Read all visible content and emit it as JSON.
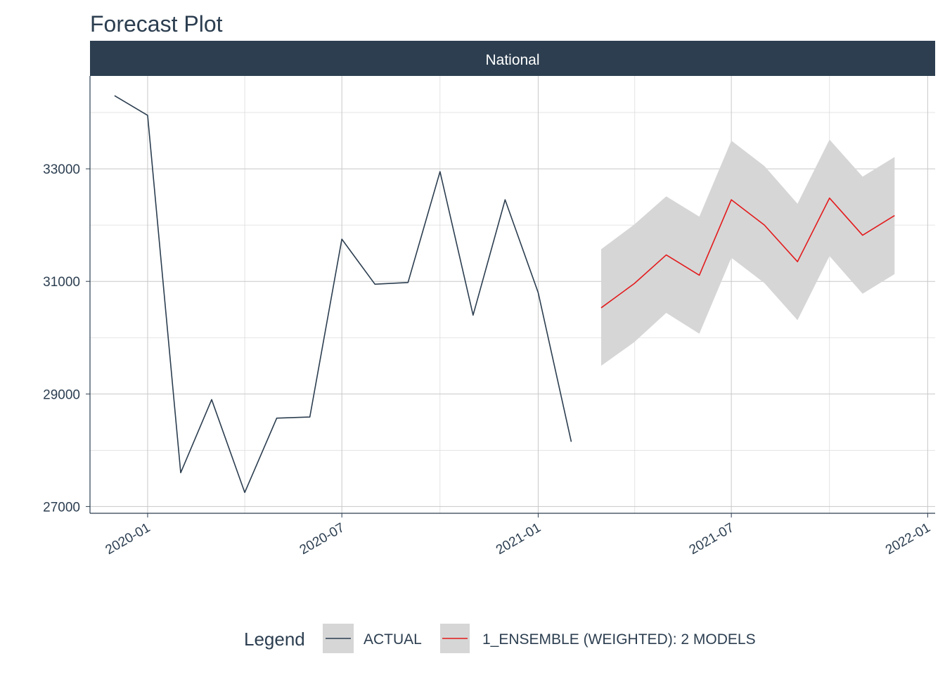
{
  "chart_data": {
    "type": "line",
    "title": "Forecast Plot",
    "facet": "National",
    "xlabel": "",
    "ylabel": "",
    "x_ticks": [
      "2020-01",
      "2020-07",
      "2021-01",
      "2021-07",
      "2022-01"
    ],
    "y_ticks": [
      27000,
      29000,
      31000,
      33000
    ],
    "ylim": [
      26880,
      34650
    ],
    "xlim": [
      "2019-11-08",
      "2022-01-08"
    ],
    "grid": true,
    "legend_title": "Legend",
    "legend_position": "bottom",
    "series": [
      {
        "name": "ACTUAL",
        "color": "#2c3e50",
        "x": [
          "2019-12-01",
          "2020-01-01",
          "2020-02-01",
          "2020-03-01",
          "2020-04-01",
          "2020-05-01",
          "2020-06-01",
          "2020-07-01",
          "2020-08-01",
          "2020-09-01",
          "2020-10-01",
          "2020-11-01",
          "2020-12-01",
          "2021-01-01",
          "2021-02-01"
        ],
        "y": [
          34300,
          33950,
          27600,
          28900,
          27250,
          28570,
          28590,
          31750,
          30950,
          30980,
          32950,
          30400,
          32450,
          30800,
          28150
        ]
      },
      {
        "name": "1_ENSEMBLE (WEIGHTED): 2 MODELS",
        "color": "#e31a1c",
        "x": [
          "2021-03-01",
          "2021-04-01",
          "2021-05-01",
          "2021-06-01",
          "2021-07-01",
          "2021-08-01",
          "2021-09-01",
          "2021-10-01",
          "2021-11-01",
          "2021-12-01"
        ],
        "y": [
          30530,
          30960,
          31470,
          31110,
          32450,
          32000,
          31350,
          32480,
          31820,
          32170
        ],
        "conf_lo": [
          29500,
          29920,
          30440,
          30070,
          31420,
          30970,
          30310,
          31450,
          30780,
          31130
        ],
        "conf_hi": [
          31570,
          32010,
          32510,
          32150,
          33500,
          33050,
          32380,
          33520,
          32860,
          33210
        ]
      }
    ]
  }
}
